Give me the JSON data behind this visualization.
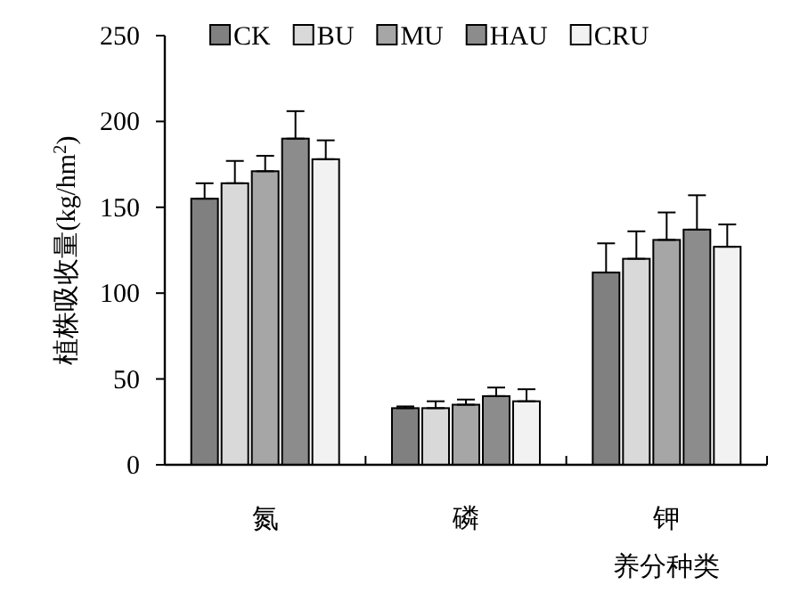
{
  "chart_data": {
    "type": "bar",
    "xlabel": "养分种类",
    "ylabel": "植株吸收量(kg/hm$^{2}$)",
    "categories": [
      "氮",
      "磷",
      "钾"
    ],
    "ylim": [
      0,
      250
    ],
    "yticks": [
      0,
      50,
      100,
      150,
      200,
      250
    ],
    "legend": "top",
    "grid": false,
    "series": [
      {
        "name": "CK",
        "color": "#808080",
        "values": [
          155,
          33,
          112
        ],
        "errors": [
          [
            155,
            164
          ],
          [
            33,
            34
          ],
          [
            112,
            129
          ]
        ]
      },
      {
        "name": "BU",
        "color": "#d9d9d9",
        "values": [
          164,
          33,
          120
        ],
        "errors": [
          [
            164,
            177
          ],
          [
            33,
            37
          ],
          [
            120,
            136
          ]
        ]
      },
      {
        "name": "MU",
        "color": "#a6a6a6",
        "values": [
          171,
          35,
          131
        ],
        "errors": [
          [
            171,
            180
          ],
          [
            35,
            38
          ],
          [
            131,
            147
          ]
        ]
      },
      {
        "name": "HAU",
        "color": "#8c8c8c",
        "values": [
          190,
          40,
          137
        ],
        "errors": [
          [
            190,
            206
          ],
          [
            40,
            45
          ],
          [
            137,
            157
          ]
        ]
      },
      {
        "name": "CRU",
        "color": "#f2f2f2",
        "values": [
          178,
          37,
          127
        ],
        "errors": [
          [
            178,
            189
          ],
          [
            37,
            44
          ],
          [
            127,
            140
          ]
        ]
      }
    ]
  }
}
